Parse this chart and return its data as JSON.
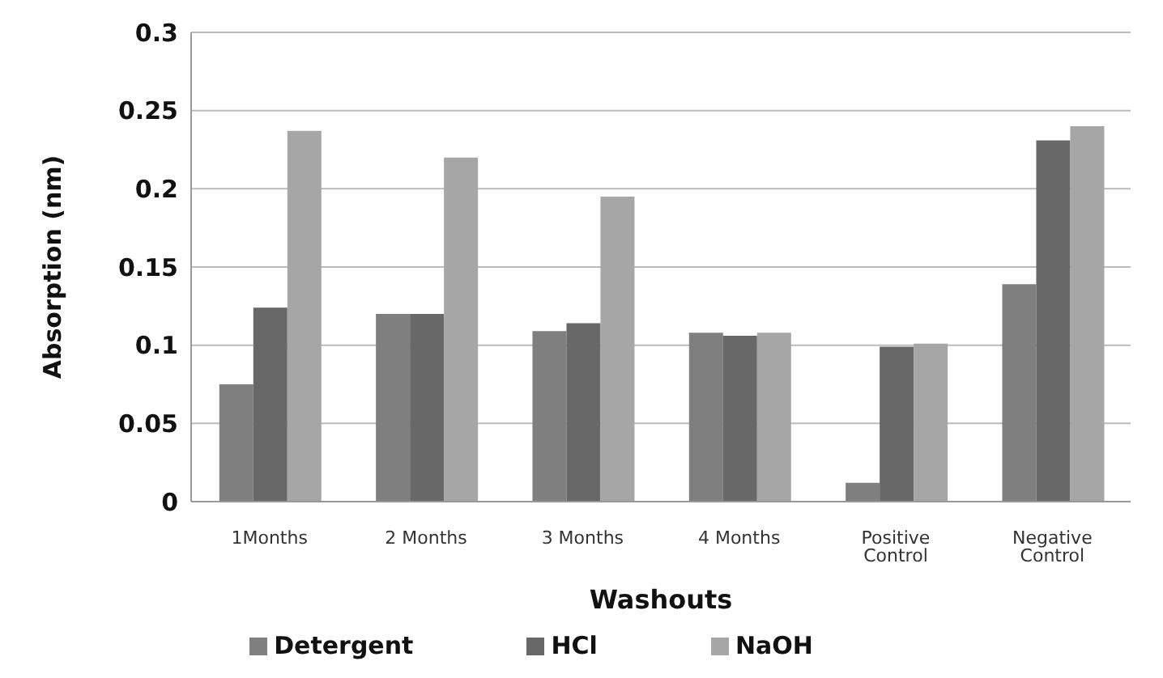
{
  "chart_data": {
    "type": "bar",
    "xlabel": "Washouts",
    "ylabel": "Absorption (nm)",
    "categories": [
      "1Months",
      "2 Months",
      "3 Months",
      "4 Months",
      "Positive Control",
      "Negative Control"
    ],
    "series": [
      {
        "name": "Detergent",
        "color": "#7f7f7f",
        "values": [
          0.075,
          0.12,
          0.109,
          0.108,
          0.012,
          0.139
        ]
      },
      {
        "name": "HCl",
        "color": "#686868",
        "values": [
          0.124,
          0.12,
          0.114,
          0.106,
          0.099,
          0.231
        ]
      },
      {
        "name": "NaOH",
        "color": "#a6a6a6",
        "values": [
          0.237,
          0.22,
          0.195,
          0.108,
          0.101,
          0.24
        ]
      }
    ],
    "ylim": [
      0,
      0.3
    ],
    "yticks": [
      0,
      0.05,
      0.1,
      0.15,
      0.2,
      0.25,
      0.3
    ],
    "grid": "y",
    "legend": "bottom"
  }
}
